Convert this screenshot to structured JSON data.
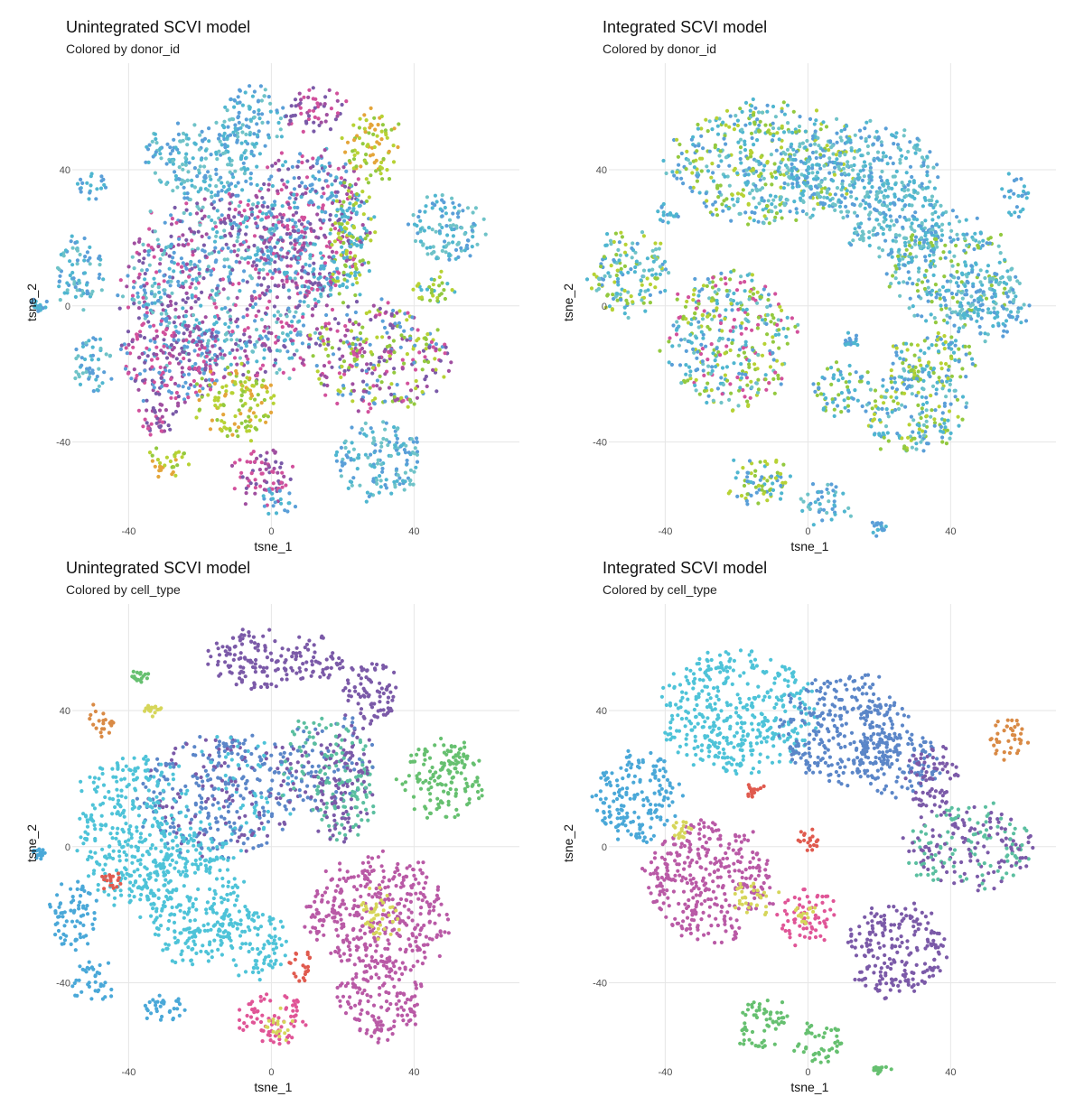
{
  "panels": [
    {
      "title": "Unintegrated SCVI model",
      "subtitle": "Colored by donor_id"
    },
    {
      "title": "Integrated SCVI model",
      "subtitle": "Colored by donor_id"
    },
    {
      "title": "Unintegrated SCVI model",
      "subtitle": "Colored by cell_type"
    },
    {
      "title": "Integrated SCVI model",
      "subtitle": "Colored by cell_type"
    }
  ],
  "chart_data": [
    {
      "type": "scatter",
      "title": "Unintegrated SCVI model",
      "subtitle": "Colored by donor_id",
      "xlabel": "tsne_1",
      "ylabel": "tsne_2",
      "xticks": [
        "-40",
        "0",
        "40"
      ],
      "yticks": [
        "40",
        "0",
        "-40"
      ],
      "xlim": [
        -52,
        67
      ],
      "ylim": [
        -64,
        66
      ],
      "grid": true,
      "palette": [
        "#4fb6d0",
        "#5a9fd8",
        "#6fc3c8",
        "#93c93f",
        "#b7d234",
        "#a04fa0",
        "#d2519c",
        "#7a5aa8",
        "#e4a53a",
        "#5d86c9"
      ],
      "clusters": [
        {
          "cx": -12,
          "cy": 5,
          "rx": 30,
          "ry": 28,
          "colors": [
            0,
            1,
            2,
            5,
            7,
            6
          ]
        },
        {
          "cx": 10,
          "cy": 25,
          "rx": 18,
          "ry": 22,
          "colors": [
            5,
            7,
            6,
            0,
            1
          ]
        },
        {
          "cx": -20,
          "cy": 42,
          "rx": 16,
          "ry": 12,
          "colors": [
            0,
            1,
            2
          ]
        },
        {
          "cx": -5,
          "cy": 55,
          "rx": 10,
          "ry": 9,
          "colors": [
            1,
            0,
            2
          ]
        },
        {
          "cx": 12,
          "cy": 57,
          "rx": 8,
          "ry": 7,
          "colors": [
            5,
            7,
            6
          ]
        },
        {
          "cx": 28,
          "cy": 47,
          "rx": 8,
          "ry": 10,
          "colors": [
            3,
            4,
            8
          ]
        },
        {
          "cx": 22,
          "cy": 20,
          "rx": 6,
          "ry": 18,
          "colors": [
            3,
            4,
            0
          ]
        },
        {
          "cx": -54,
          "cy": 10,
          "rx": 7,
          "ry": 10,
          "colors": [
            0,
            1,
            2
          ]
        },
        {
          "cx": -50,
          "cy": -18,
          "rx": 6,
          "ry": 8,
          "colors": [
            0,
            1,
            2
          ]
        },
        {
          "cx": -28,
          "cy": -15,
          "rx": 14,
          "ry": 14,
          "colors": [
            5,
            6,
            7,
            1
          ]
        },
        {
          "cx": -32,
          "cy": -32,
          "rx": 6,
          "ry": 6,
          "colors": [
            5,
            6,
            7
          ]
        },
        {
          "cx": -29,
          "cy": -46,
          "rx": 6,
          "ry": 5,
          "colors": [
            3,
            4,
            8
          ]
        },
        {
          "cx": -10,
          "cy": -28,
          "rx": 11,
          "ry": 11,
          "colors": [
            4,
            3,
            8
          ]
        },
        {
          "cx": -3,
          "cy": -50,
          "rx": 9,
          "ry": 8,
          "colors": [
            5,
            6,
            7
          ]
        },
        {
          "cx": 2,
          "cy": -58,
          "rx": 5,
          "ry": 4,
          "colors": [
            0,
            1
          ]
        },
        {
          "cx": 30,
          "cy": -15,
          "rx": 20,
          "ry": 16,
          "colors": [
            3,
            4,
            5,
            7,
            6,
            1
          ]
        },
        {
          "cx": 30,
          "cy": -45,
          "rx": 12,
          "ry": 12,
          "colors": [
            0,
            1,
            2
          ]
        },
        {
          "cx": 49,
          "cy": 22,
          "rx": 11,
          "ry": 10,
          "colors": [
            0,
            1,
            2
          ]
        },
        {
          "cx": 45,
          "cy": 5,
          "rx": 6,
          "ry": 5,
          "colors": [
            3,
            4,
            0
          ]
        },
        {
          "cx": -50,
          "cy": 35,
          "rx": 5,
          "ry": 4,
          "colors": [
            0,
            1
          ]
        },
        {
          "cx": -65,
          "cy": 0,
          "rx": 1.5,
          "ry": 1.5,
          "colors": [
            0,
            1
          ]
        }
      ]
    },
    {
      "type": "scatter",
      "title": "Integrated SCVI model",
      "subtitle": "Colored by donor_id",
      "xlabel": "tsne_1",
      "ylabel": "tsne_2",
      "xticks": [
        "-40",
        "0",
        "40"
      ],
      "yticks": [
        "40",
        "0",
        "-40"
      ],
      "xlim": [
        -52,
        67
      ],
      "ylim": [
        -64,
        66
      ],
      "grid": true,
      "palette": [
        "#4fb6d0",
        "#5a9fd8",
        "#6fc3c8",
        "#93c93f",
        "#b7d234",
        "#a04fa0",
        "#d2519c",
        "#7a5aa8",
        "#e4a53a",
        "#5d86c9"
      ],
      "clusters": [
        {
          "cx": -12,
          "cy": 42,
          "rx": 26,
          "ry": 18,
          "colors": [
            0,
            1,
            2,
            3,
            4
          ]
        },
        {
          "cx": 15,
          "cy": 40,
          "rx": 22,
          "ry": 14,
          "colors": [
            0,
            1,
            2
          ]
        },
        {
          "cx": 25,
          "cy": 25,
          "rx": 15,
          "ry": 12,
          "colors": [
            1,
            0,
            2
          ]
        },
        {
          "cx": 40,
          "cy": 10,
          "rx": 18,
          "ry": 15,
          "colors": [
            0,
            1,
            2,
            3
          ]
        },
        {
          "cx": 50,
          "cy": 0,
          "rx": 12,
          "ry": 10,
          "colors": [
            0,
            1,
            2
          ]
        },
        {
          "cx": -50,
          "cy": 10,
          "rx": 11,
          "ry": 13,
          "colors": [
            0,
            1,
            2,
            3,
            4
          ]
        },
        {
          "cx": -22,
          "cy": -10,
          "rx": 18,
          "ry": 20,
          "colors": [
            0,
            1,
            3,
            4,
            2,
            6
          ]
        },
        {
          "cx": 10,
          "cy": -25,
          "rx": 8,
          "ry": 8,
          "colors": [
            0,
            1,
            3
          ]
        },
        {
          "cx": 30,
          "cy": -30,
          "rx": 14,
          "ry": 14,
          "colors": [
            0,
            1,
            2,
            3,
            4
          ]
        },
        {
          "cx": 35,
          "cy": -15,
          "rx": 12,
          "ry": 8,
          "colors": [
            0,
            1,
            3,
            4
          ]
        },
        {
          "cx": 58,
          "cy": 32,
          "rx": 4,
          "ry": 6,
          "colors": [
            0,
            1
          ]
        },
        {
          "cx": -14,
          "cy": -52,
          "rx": 9,
          "ry": 8,
          "colors": [
            0,
            1,
            3,
            4
          ]
        },
        {
          "cx": 5,
          "cy": -58,
          "rx": 7,
          "ry": 6,
          "colors": [
            0,
            1,
            2
          ]
        },
        {
          "cx": -40,
          "cy": 27,
          "rx": 3,
          "ry": 3,
          "colors": [
            0,
            1
          ]
        },
        {
          "cx": 20,
          "cy": -65,
          "rx": 1.5,
          "ry": 2,
          "colors": [
            0,
            1
          ]
        },
        {
          "cx": 12,
          "cy": -10,
          "rx": 2,
          "ry": 2,
          "colors": [
            0,
            1
          ]
        }
      ]
    },
    {
      "type": "scatter",
      "title": "Unintegrated SCVI model",
      "subtitle": "Colored by cell_type",
      "xlabel": "tsne_1",
      "ylabel": "tsne_2",
      "xticks": [
        "-40",
        "0",
        "40"
      ],
      "yticks": [
        "40",
        "0",
        "-40"
      ],
      "xlim": [
        -52,
        67
      ],
      "ylim": [
        -64,
        66
      ],
      "grid": true,
      "palette": [
        "#4ec3d8",
        "#5b86c8",
        "#4aa8d8",
        "#7b5aa8",
        "#5bbfa0",
        "#66c070",
        "#b95aa6",
        "#e05597",
        "#e05a4e",
        "#d6d65a",
        "#d98a45"
      ],
      "clusters": [
        {
          "cx": -5,
          "cy": 55,
          "rx": 12,
          "ry": 9,
          "colors": [
            3
          ]
        },
        {
          "cx": 12,
          "cy": 55,
          "rx": 8,
          "ry": 7,
          "colors": [
            3
          ]
        },
        {
          "cx": 28,
          "cy": 45,
          "rx": 8,
          "ry": 10,
          "colors": [
            3
          ]
        },
        {
          "cx": -15,
          "cy": 15,
          "rx": 22,
          "ry": 18,
          "colors": [
            1,
            1,
            3,
            0
          ]
        },
        {
          "cx": 15,
          "cy": 25,
          "rx": 14,
          "ry": 14,
          "colors": [
            3,
            4,
            1
          ]
        },
        {
          "cx": 20,
          "cy": 15,
          "rx": 8,
          "ry": 16,
          "colors": [
            4,
            3
          ]
        },
        {
          "cx": -40,
          "cy": 5,
          "rx": 14,
          "ry": 22,
          "colors": [
            0
          ]
        },
        {
          "cx": -22,
          "cy": -15,
          "rx": 14,
          "ry": 20,
          "colors": [
            0
          ]
        },
        {
          "cx": -5,
          "cy": -28,
          "rx": 10,
          "ry": 10,
          "colors": [
            0
          ]
        },
        {
          "cx": -55,
          "cy": -20,
          "rx": 7,
          "ry": 10,
          "colors": [
            2
          ]
        },
        {
          "cx": -50,
          "cy": -40,
          "rx": 6,
          "ry": 6,
          "colors": [
            2
          ]
        },
        {
          "cx": -30,
          "cy": -48,
          "rx": 6,
          "ry": 5,
          "colors": [
            2
          ]
        },
        {
          "cx": 30,
          "cy": -20,
          "rx": 20,
          "ry": 18,
          "colors": [
            6
          ]
        },
        {
          "cx": 30,
          "cy": -45,
          "rx": 12,
          "ry": 12,
          "colors": [
            6
          ]
        },
        {
          "cx": 0,
          "cy": -50,
          "rx": 9,
          "ry": 8,
          "colors": [
            7
          ]
        },
        {
          "cx": 8,
          "cy": -35,
          "rx": 4,
          "ry": 5,
          "colors": [
            8
          ]
        },
        {
          "cx": 48,
          "cy": 20,
          "rx": 12,
          "ry": 12,
          "colors": [
            5
          ]
        },
        {
          "cx": -48,
          "cy": 37,
          "rx": 5,
          "ry": 4,
          "colors": [
            10
          ]
        },
        {
          "cx": -33,
          "cy": 40,
          "rx": 2,
          "ry": 2,
          "colors": [
            9
          ]
        },
        {
          "cx": -37,
          "cy": 50,
          "rx": 1.5,
          "ry": 1.5,
          "colors": [
            5
          ]
        },
        {
          "cx": -65,
          "cy": -2,
          "rx": 1.5,
          "ry": 1.5,
          "colors": [
            2
          ]
        }
      ],
      "accents": [
        {
          "cx": -45,
          "cy": -10,
          "rx": 3,
          "ry": 3,
          "colors": [
            8
          ]
        },
        {
          "cx": 30,
          "cy": -20,
          "rx": 6,
          "ry": 8,
          "colors": [
            9
          ]
        },
        {
          "cx": 2,
          "cy": -52,
          "rx": 4,
          "ry": 4,
          "colors": [
            9
          ]
        }
      ]
    },
    {
      "type": "scatter",
      "title": "Integrated SCVI model",
      "subtitle": "Colored by cell_type",
      "xlabel": "tsne_1",
      "ylabel": "tsne_2",
      "xticks": [
        "-40",
        "0",
        "40"
      ],
      "yticks": [
        "40",
        "0",
        "-40"
      ],
      "xlim": [
        -52,
        67
      ],
      "ylim": [
        -64,
        66
      ],
      "grid": true,
      "palette": [
        "#4ec3d8",
        "#5b86c8",
        "#4aa8d8",
        "#7b5aa8",
        "#5bbfa0",
        "#66c070",
        "#b95aa6",
        "#e05597",
        "#e05a4e",
        "#d6d65a",
        "#d98a45"
      ],
      "clusters": [
        {
          "cx": -20,
          "cy": 40,
          "rx": 22,
          "ry": 18,
          "colors": [
            0
          ]
        },
        {
          "cx": 10,
          "cy": 35,
          "rx": 18,
          "ry": 16,
          "colors": [
            1
          ]
        },
        {
          "cx": 25,
          "cy": 25,
          "rx": 12,
          "ry": 10,
          "colors": [
            1
          ]
        },
        {
          "cx": -48,
          "cy": 15,
          "rx": 12,
          "ry": 14,
          "colors": [
            2
          ]
        },
        {
          "cx": 45,
          "cy": 0,
          "rx": 18,
          "ry": 12,
          "colors": [
            4,
            3
          ]
        },
        {
          "cx": 35,
          "cy": 20,
          "rx": 7,
          "ry": 10,
          "colors": [
            3
          ]
        },
        {
          "cx": -28,
          "cy": -10,
          "rx": 18,
          "ry": 18,
          "colors": [
            6
          ]
        },
        {
          "cx": 0,
          "cy": -20,
          "rx": 8,
          "ry": 8,
          "colors": [
            7
          ]
        },
        {
          "cx": 25,
          "cy": -30,
          "rx": 14,
          "ry": 14,
          "colors": [
            3
          ]
        },
        {
          "cx": -13,
          "cy": -52,
          "rx": 8,
          "ry": 7,
          "colors": [
            5
          ]
        },
        {
          "cx": 3,
          "cy": -58,
          "rx": 7,
          "ry": 6,
          "colors": [
            5
          ]
        },
        {
          "cx": 56,
          "cy": 32,
          "rx": 5,
          "ry": 7,
          "colors": [
            10
          ]
        },
        {
          "cx": -15,
          "cy": 17,
          "rx": 2.5,
          "ry": 2.5,
          "colors": [
            8
          ]
        },
        {
          "cx": 0,
          "cy": 2,
          "rx": 3,
          "ry": 3,
          "colors": [
            8
          ]
        },
        {
          "cx": -35,
          "cy": 5,
          "rx": 2.5,
          "ry": 2.5,
          "colors": [
            9
          ]
        },
        {
          "cx": 20,
          "cy": -65,
          "rx": 2,
          "ry": 2,
          "colors": [
            5
          ]
        }
      ],
      "accents": [
        {
          "cx": -15,
          "cy": -15,
          "rx": 6,
          "ry": 6,
          "colors": [
            9
          ]
        },
        {
          "cx": 0,
          "cy": -20,
          "rx": 3,
          "ry": 3,
          "colors": [
            9
          ]
        }
      ]
    }
  ]
}
